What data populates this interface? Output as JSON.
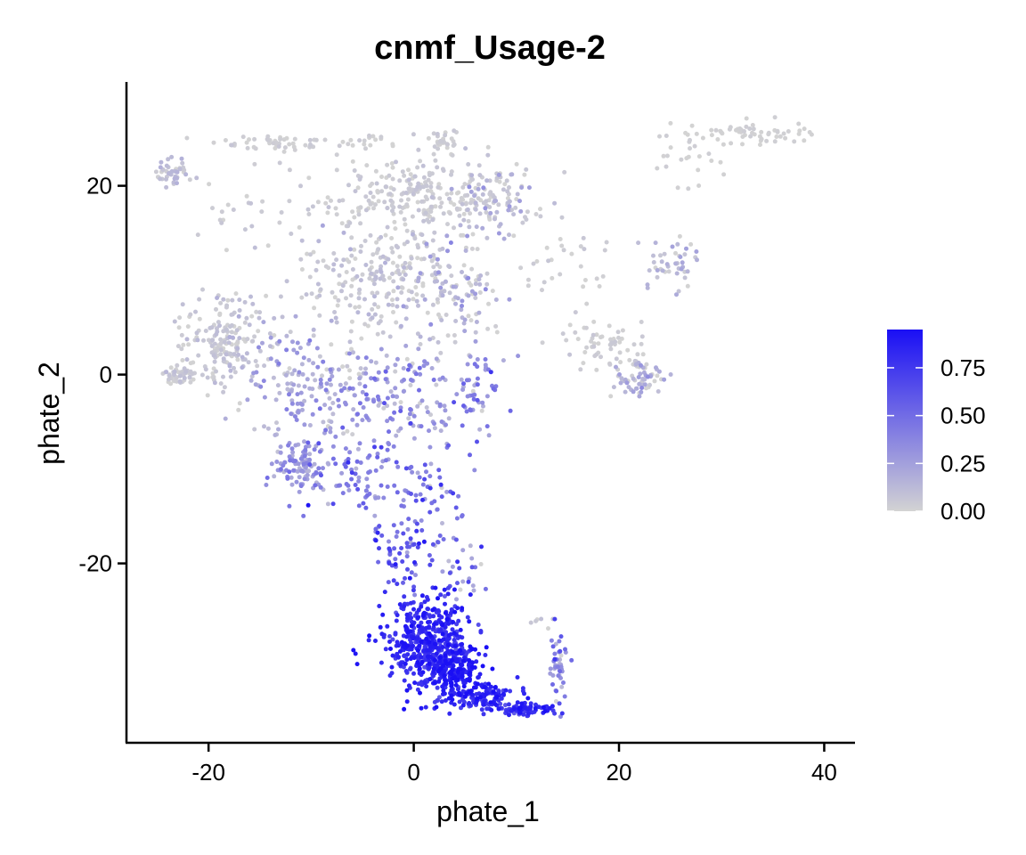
{
  "chart_data": {
    "type": "scatter",
    "title": "cnmf_Usage-2",
    "xlabel": "phate_1",
    "ylabel": "phate_2",
    "xlim": [
      -28,
      43
    ],
    "ylim": [
      -39,
      31
    ],
    "xticks": [
      "-20",
      "0",
      "20",
      "40"
    ],
    "xtick_values": [
      -20,
      0,
      20,
      40
    ],
    "yticks": [
      "-20",
      "0",
      "20"
    ],
    "ytick_values": [
      -20,
      0,
      20
    ],
    "grid": false,
    "legend": {
      "position": "right",
      "type": "colorbar",
      "range": [
        0,
        0.95
      ],
      "low_color": "#d3d3d3",
      "high_color": "#1a0ff5",
      "tick_labels": [
        "0.00",
        "0.25",
        "0.50",
        "0.75"
      ],
      "tick_values": [
        0,
        0.25,
        0.5,
        0.75
      ]
    },
    "point_color": {
      "low": "#d3d3d3",
      "high": "#1a0ff5"
    },
    "regions": [
      {
        "cx": -23.5,
        "cy": 21.5,
        "sx": 1.2,
        "sy": 1.3,
        "n": 45,
        "v": 0.08,
        "vs": 0.06
      },
      {
        "cx": -14,
        "cy": 24.5,
        "sx": 4.5,
        "sy": 0.7,
        "n": 45,
        "v": 0.02,
        "vs": 0.02
      },
      {
        "cx": -5,
        "cy": 24.5,
        "sx": 3.0,
        "sy": 0.8,
        "n": 20,
        "v": 0.02,
        "vs": 0.02
      },
      {
        "cx": 1,
        "cy": 19,
        "sx": 6.5,
        "sy": 2.6,
        "n": 260,
        "v": 0.03,
        "vs": 0.03
      },
      {
        "cx": 8,
        "cy": 18.5,
        "sx": 2.8,
        "sy": 2.6,
        "n": 70,
        "v": 0.12,
        "vs": 0.1
      },
      {
        "cx": 2.5,
        "cy": 24.5,
        "sx": 1.5,
        "sy": 1.2,
        "n": 30,
        "v": 0.02,
        "vs": 0.02
      },
      {
        "cx": -3,
        "cy": 10,
        "sx": 7.0,
        "sy": 5.0,
        "n": 260,
        "v": 0.05,
        "vs": 0.05
      },
      {
        "cx": 4,
        "cy": 9,
        "sx": 3.5,
        "sy": 5.0,
        "n": 90,
        "v": 0.15,
        "vs": 0.12
      },
      {
        "cx": -18.5,
        "cy": 3.5,
        "sx": 2.8,
        "sy": 3.5,
        "n": 190,
        "v": 0.05,
        "vs": 0.05
      },
      {
        "cx": -23,
        "cy": 0,
        "sx": 1.2,
        "sy": 0.7,
        "n": 50,
        "v": 0.04,
        "vs": 0.04
      },
      {
        "cx": -10,
        "cy": -1,
        "sx": 4.5,
        "sy": 4.0,
        "n": 170,
        "v": 0.2,
        "vs": 0.12
      },
      {
        "cx": -1,
        "cy": -2,
        "sx": 5.0,
        "sy": 4.0,
        "n": 140,
        "v": 0.28,
        "vs": 0.15
      },
      {
        "cx": 6,
        "cy": -2,
        "sx": 2.5,
        "sy": 4.0,
        "n": 45,
        "v": 0.35,
        "vs": 0.15
      },
      {
        "cx": -11,
        "cy": -9.5,
        "sx": 1.8,
        "sy": 1.8,
        "n": 100,
        "v": 0.3,
        "vs": 0.1
      },
      {
        "cx": -5,
        "cy": -11,
        "sx": 4.0,
        "sy": 3.5,
        "n": 80,
        "v": 0.38,
        "vs": 0.15
      },
      {
        "cx": 2,
        "cy": -13,
        "sx": 3.0,
        "sy": 4.5,
        "n": 60,
        "v": 0.45,
        "vs": 0.15
      },
      {
        "cx": -1,
        "cy": -19,
        "sx": 2.5,
        "sy": 3.0,
        "n": 60,
        "v": 0.58,
        "vs": 0.15
      },
      {
        "cx": 5,
        "cy": -21,
        "sx": 2.0,
        "sy": 2.5,
        "n": 25,
        "v": 0.35,
        "vs": 0.2
      },
      {
        "cx": 1.5,
        "cy": -28.5,
        "sx": 3.0,
        "sy": 3.3,
        "n": 500,
        "v": 0.8,
        "vs": 0.09
      },
      {
        "cx": 4,
        "cy": -31.5,
        "sx": 2.0,
        "sy": 2.0,
        "n": 180,
        "v": 0.88,
        "vs": 0.07
      },
      {
        "cx": 7.5,
        "cy": -34.2,
        "sx": 2.5,
        "sy": 1.0,
        "n": 110,
        "v": 0.8,
        "vs": 0.09
      },
      {
        "cx": 11,
        "cy": -35.5,
        "sx": 1.8,
        "sy": 0.4,
        "n": 70,
        "v": 0.78,
        "vs": 0.1
      },
      {
        "cx": 14,
        "cy": -31,
        "sx": 0.6,
        "sy": 3.0,
        "n": 45,
        "v": 0.32,
        "vs": 0.15
      },
      {
        "cx": 12.5,
        "cy": -26,
        "sx": 0.8,
        "sy": 1.0,
        "n": 6,
        "v": 0.05,
        "vs": 0.05
      },
      {
        "cx": 19,
        "cy": 3,
        "sx": 3.0,
        "sy": 2.2,
        "n": 60,
        "v": 0.02,
        "vs": 0.02
      },
      {
        "cx": 22,
        "cy": -0.5,
        "sx": 1.8,
        "sy": 1.5,
        "n": 60,
        "v": 0.12,
        "vs": 0.12
      },
      {
        "cx": 25,
        "cy": 12,
        "sx": 2.2,
        "sy": 2.0,
        "n": 45,
        "v": 0.12,
        "vs": 0.08
      },
      {
        "cx": 33,
        "cy": 25.5,
        "sx": 4.5,
        "sy": 1.0,
        "n": 60,
        "v": 0.01,
        "vs": 0.01
      },
      {
        "cx": 27,
        "cy": 23,
        "sx": 3.0,
        "sy": 3.0,
        "n": 25,
        "v": 0.01,
        "vs": 0.01
      },
      {
        "cx": 15,
        "cy": 12,
        "sx": 4.0,
        "sy": 5.0,
        "n": 35,
        "v": 0.03,
        "vs": 0.03
      },
      {
        "cx": -15,
        "cy": 18,
        "sx": 5.0,
        "sy": 3.5,
        "n": 30,
        "v": 0.02,
        "vs": 0.03
      }
    ]
  }
}
